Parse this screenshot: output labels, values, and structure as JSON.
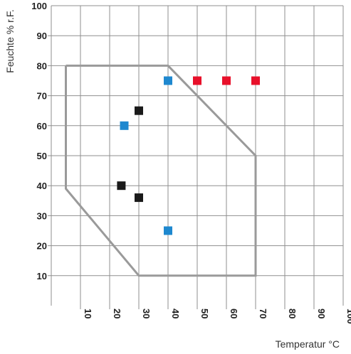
{
  "chart_data": {
    "type": "scatter",
    "title": "",
    "xlabel": "Temperatur °C",
    "ylabel": "Feuchte % r.F.",
    "xlim": [
      0,
      100
    ],
    "ylim": [
      0,
      100
    ],
    "x_ticks": [
      10,
      20,
      30,
      40,
      50,
      60,
      70,
      80,
      90,
      100
    ],
    "y_ticks": [
      10,
      20,
      30,
      40,
      50,
      60,
      70,
      80,
      90,
      100
    ],
    "grid": true,
    "boundary_polygon": [
      [
        5,
        80
      ],
      [
        40,
        80
      ],
      [
        70,
        50
      ],
      [
        70,
        10
      ],
      [
        30,
        10
      ],
      [
        5,
        39
      ],
      [
        5,
        80
      ]
    ],
    "points": [
      {
        "x": 40,
        "y": 75,
        "color": "#1e88cf"
      },
      {
        "x": 50,
        "y": 75,
        "color": "#e8102a"
      },
      {
        "x": 60,
        "y": 75,
        "color": "#e8102a"
      },
      {
        "x": 70,
        "y": 75,
        "color": "#e8102a"
      },
      {
        "x": 30,
        "y": 65,
        "color": "#1a1a1a"
      },
      {
        "x": 25,
        "y": 60,
        "color": "#1e88cf"
      },
      {
        "x": 24,
        "y": 40,
        "color": "#1a1a1a"
      },
      {
        "x": 30,
        "y": 36,
        "color": "#1a1a1a"
      },
      {
        "x": 40,
        "y": 25,
        "color": "#1e88cf"
      }
    ],
    "colors": {
      "grid": "#8f8f8f",
      "boundary": "#9a9a9a",
      "blue": "#1e88cf",
      "red": "#e8102a",
      "black": "#1a1a1a"
    }
  }
}
